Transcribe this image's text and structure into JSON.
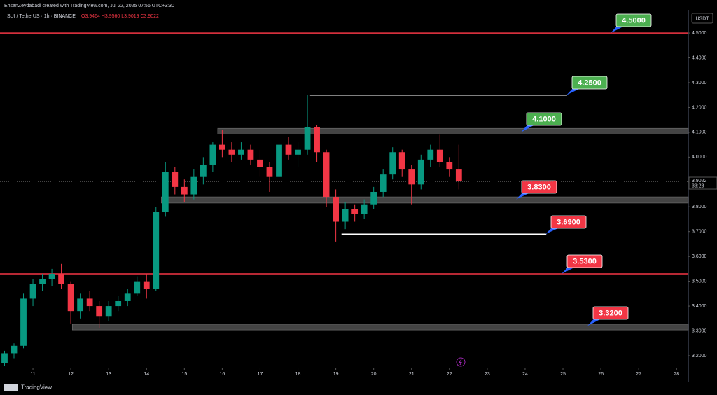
{
  "header": {
    "credit": "EhsanZeydabadi created with TradingView.com, Jul 22, 2025 07:56 UTC+3:30",
    "symbol": "SUI / TetherUS · 1h · BINANCE",
    "ohlc": "O3.9464 H3.9560 L3.9019 C3.9022",
    "currency": "USDT"
  },
  "footer": {
    "brand": "TradingView"
  },
  "chart_data": {
    "type": "candlestick",
    "up_color": "#089981",
    "down_color": "#f23645",
    "x": [
      10.25,
      10.5,
      10.75,
      11,
      11.25,
      11.5,
      11.75,
      12,
      12.25,
      12.5,
      12.75,
      13,
      13.25,
      13.5,
      13.75,
      14,
      14.25,
      14.5,
      14.75,
      15,
      15.25,
      15.5,
      15.75,
      16,
      16.25,
      16.5,
      16.75,
      17,
      17.25,
      17.5,
      17.75,
      18,
      18.25,
      18.5,
      18.75,
      19,
      19.25,
      19.5,
      19.75,
      20,
      20.25,
      20.5,
      20.75,
      21,
      21.25,
      21.5,
      21.75,
      22,
      22.25
    ],
    "open": [
      3.17,
      3.21,
      3.24,
      3.43,
      3.49,
      3.51,
      3.53,
      3.49,
      3.38,
      3.43,
      3.4,
      3.36,
      3.4,
      3.42,
      3.45,
      3.5,
      3.47,
      3.78,
      3.94,
      3.88,
      3.85,
      3.92,
      3.97,
      4.05,
      4.03,
      4.01,
      4.03,
      3.99,
      3.96,
      3.92,
      4.05,
      4.01,
      4.03,
      4.12,
      4.02,
      3.84,
      3.74,
      3.79,
      3.77,
      3.81,
      3.86,
      3.93,
      4.02,
      3.95,
      3.89,
      3.99,
      4.03,
      3.98,
      3.95
    ],
    "high": [
      3.22,
      3.25,
      3.45,
      3.51,
      3.53,
      3.55,
      3.57,
      3.5,
      3.45,
      3.46,
      3.42,
      3.42,
      3.44,
      3.47,
      3.52,
      3.53,
      3.8,
      3.98,
      3.96,
      3.91,
      3.95,
      4.0,
      4.06,
      4.11,
      4.06,
      4.06,
      4.05,
      4.03,
      3.98,
      4.07,
      4.08,
      4.06,
      4.25,
      4.13,
      4.03,
      3.87,
      3.82,
      3.81,
      3.83,
      3.88,
      3.95,
      4.04,
      4.03,
      3.97,
      4.01,
      4.05,
      4.09,
      4.0,
      4.05
    ],
    "low": [
      3.16,
      3.19,
      3.23,
      3.4,
      3.46,
      3.48,
      3.47,
      3.33,
      3.35,
      3.38,
      3.31,
      3.34,
      3.38,
      3.4,
      3.44,
      3.43,
      3.46,
      3.76,
      3.85,
      3.82,
      3.83,
      3.89,
      3.94,
      4.0,
      3.98,
      3.99,
      3.97,
      3.92,
      3.86,
      3.9,
      3.99,
      3.96,
      4.01,
      3.98,
      3.8,
      3.66,
      3.71,
      3.74,
      3.75,
      3.79,
      3.84,
      3.91,
      3.92,
      3.81,
      3.87,
      3.96,
      3.96,
      3.92,
      3.87
    ],
    "close": [
      3.21,
      3.24,
      3.43,
      3.49,
      3.51,
      3.53,
      3.49,
      3.38,
      3.43,
      3.4,
      3.36,
      3.4,
      3.42,
      3.45,
      3.5,
      3.47,
      3.78,
      3.94,
      3.88,
      3.85,
      3.92,
      3.97,
      4.05,
      4.03,
      4.01,
      4.03,
      3.99,
      3.96,
      3.92,
      4.05,
      4.01,
      4.03,
      4.12,
      4.02,
      3.84,
      3.74,
      3.79,
      3.77,
      3.81,
      3.86,
      3.93,
      4.02,
      3.95,
      3.89,
      3.99,
      4.03,
      3.98,
      3.95,
      3.9022
    ],
    "xlim": [
      10.13,
      28.31
    ],
    "xticks": [
      11,
      12,
      13,
      14,
      15,
      16,
      17,
      18,
      19,
      20,
      21,
      22,
      23,
      24,
      25,
      26,
      27,
      28
    ],
    "ylim": [
      3.152,
      4.582
    ],
    "yticks": [
      {
        "value": 3.2,
        "label": "3.2000"
      },
      {
        "value": 3.3,
        "label": "3.3000"
      },
      {
        "value": 3.4,
        "label": "3.4000"
      },
      {
        "value": 3.5,
        "label": "3.5000"
      },
      {
        "value": 3.6,
        "label": "3.6000"
      },
      {
        "value": 3.7,
        "label": "3.7000"
      },
      {
        "value": 3.8,
        "label": "3.8000"
      },
      {
        "value": 3.9,
        "label": "3.9000"
      },
      {
        "value": 4.0,
        "label": "4.0000"
      },
      {
        "value": 4.1,
        "label": "4.1000"
      },
      {
        "value": 4.2,
        "label": "4.2000"
      },
      {
        "value": 4.3,
        "label": "4.3000"
      },
      {
        "value": 4.4,
        "label": "4.4000"
      },
      {
        "value": 4.5,
        "label": "4.5000"
      }
    ],
    "last_price": {
      "value": 3.9022,
      "label": "3.9022"
    },
    "countdown": "33:23",
    "levels": [
      {
        "kind": "line",
        "value": 4.5,
        "label": "4.5000",
        "color": "#f23645",
        "tag_color": "#4caf50"
      },
      {
        "kind": "line",
        "value": 4.25,
        "label": "4.2500",
        "color": "#ffffff",
        "tag_color": "#4caf50",
        "x": [
          18.32,
          25.11
        ]
      },
      {
        "kind": "zone",
        "value": 4.1,
        "label": "4.1000",
        "band": [
          4.093,
          4.116
        ],
        "color": "#505050",
        "tag_color": "#4caf50",
        "x": [
          15.88,
          28.31
        ]
      },
      {
        "kind": "zone",
        "value": 3.83,
        "label": "3.8300",
        "band": [
          3.815,
          3.84
        ],
        "color": "#505050",
        "tag_color": "#f23645",
        "x": [
          14.39,
          28.31
        ]
      },
      {
        "kind": "line",
        "value": 3.69,
        "label": "3.6900",
        "color": "#ffffff",
        "tag_color": "#f23645",
        "x": [
          19.15,
          24.56
        ]
      },
      {
        "kind": "line",
        "value": 3.53,
        "label": "3.5300",
        "color": "#f23645",
        "tag_color": "#f23645"
      },
      {
        "kind": "zone",
        "value": 3.32,
        "label": "3.3200",
        "band": [
          3.304,
          3.327
        ],
        "color": "#505050",
        "tag_color": "#f23645",
        "x": [
          12.04,
          28.31
        ]
      }
    ]
  }
}
